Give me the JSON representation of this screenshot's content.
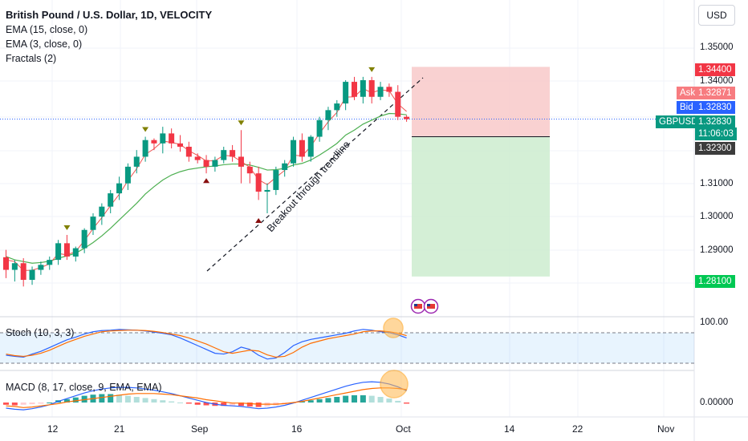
{
  "legend": {
    "title": "British Pound / U.S. Dollar, 1D, VELOCITY",
    "ema15": "EMA (15, close, 0)",
    "ema3": "EMA (3, close, 0)",
    "fractals": "Fractals (2)"
  },
  "currency_button": "USD",
  "symbol": "GBPUSD",
  "countdown": "11:06:03",
  "price_axis": {
    "ticks": [
      "1.35000",
      "1.34000",
      "1.31000",
      "1.30000",
      "1.29000"
    ],
    "take_profit": "1.34400",
    "ask_label": "Ask",
    "ask": "1.32871",
    "bid_label": "Bid",
    "bid": "1.32830",
    "last": "1.32830",
    "entry": "1.32300",
    "stop": "1.28100",
    "stoch_level": "100.00",
    "macd_level": "0.00000"
  },
  "x_axis": [
    "12",
    "21",
    "Sep",
    "16",
    "Oct",
    "14",
    "22",
    "Nov"
  ],
  "annotation": "Breakout through trendline",
  "stoch_label": "Stoch (10, 3, 3)",
  "macd_label": "MACD (8, 17, close, 9, EMA, EMA)",
  "colors": {
    "up": "#089981",
    "down": "#f23645",
    "ema15": "#4caf50",
    "ema3": "#ef5350",
    "stoch_k": "#2962ff",
    "stoch_d": "#ff6d00",
    "profit": "#f8c9c9",
    "loss": "#cdeccf"
  },
  "chart_data": {
    "type": "candlestick",
    "timeframe": "1D",
    "yrange": [
      1.276,
      1.356
    ],
    "candles": [
      [
        1.2868,
        1.289,
        1.2805,
        1.283
      ],
      [
        1.283,
        1.286,
        1.2795,
        1.285
      ],
      [
        1.285,
        1.2865,
        1.278,
        1.28
      ],
      [
        1.28,
        1.284,
        1.2785,
        1.283
      ],
      [
        1.283,
        1.2855,
        1.2815,
        1.2845
      ],
      [
        1.2845,
        1.287,
        1.283,
        1.286
      ],
      [
        1.286,
        1.292,
        1.2845,
        1.291
      ],
      [
        1.291,
        1.2935,
        1.286,
        1.287
      ],
      [
        1.287,
        1.29,
        1.2855,
        1.2895
      ],
      [
        1.2895,
        1.2955,
        1.288,
        1.295
      ],
      [
        1.295,
        1.3,
        1.2935,
        1.299
      ],
      [
        1.299,
        1.303,
        1.2965,
        1.302
      ],
      [
        1.302,
        1.307,
        1.3,
        1.306
      ],
      [
        1.306,
        1.311,
        1.304,
        1.309
      ],
      [
        1.309,
        1.315,
        1.307,
        1.314
      ],
      [
        1.314,
        1.319,
        1.312,
        1.317
      ],
      [
        1.317,
        1.323,
        1.3155,
        1.322
      ],
      [
        1.322,
        1.3225,
        1.319,
        1.321
      ],
      [
        1.321,
        1.326,
        1.318,
        1.324
      ],
      [
        1.324,
        1.3255,
        1.3195,
        1.321
      ],
      [
        1.321,
        1.3235,
        1.3185,
        1.32
      ],
      [
        1.32,
        1.3215,
        1.3155,
        1.317
      ],
      [
        1.317,
        1.318,
        1.315,
        1.316
      ],
      [
        1.316,
        1.3175,
        1.312,
        1.314
      ],
      [
        1.314,
        1.317,
        1.3125,
        1.316
      ],
      [
        1.316,
        1.32,
        1.315,
        1.319
      ],
      [
        1.319,
        1.3205,
        1.3155,
        1.317
      ],
      [
        1.317,
        1.325,
        1.309,
        1.314
      ],
      [
        1.314,
        1.3155,
        1.309,
        1.312
      ],
      [
        1.312,
        1.314,
        1.304,
        1.3065
      ],
      [
        1.3065,
        1.309,
        1.3,
        1.307
      ],
      [
        1.307,
        1.314,
        1.3055,
        1.313
      ],
      [
        1.313,
        1.316,
        1.311,
        1.315
      ],
      [
        1.315,
        1.323,
        1.314,
        1.322
      ],
      [
        1.322,
        1.324,
        1.3155,
        1.317
      ],
      [
        1.317,
        1.3235,
        1.3155,
        1.323
      ],
      [
        1.323,
        1.329,
        1.3215,
        1.328
      ],
      [
        1.328,
        1.332,
        1.325,
        1.331
      ],
      [
        1.331,
        1.334,
        1.329,
        1.333
      ],
      [
        1.333,
        1.34,
        1.331,
        1.3395
      ],
      [
        1.3395,
        1.341,
        1.334,
        1.335
      ],
      [
        1.335,
        1.341,
        1.333,
        1.34
      ],
      [
        1.34,
        1.341,
        1.333,
        1.335
      ],
      [
        1.335,
        1.3395,
        1.334,
        1.338
      ],
      [
        1.338,
        1.339,
        1.335,
        1.3365
      ],
      [
        1.3365,
        1.3385,
        1.328,
        1.329
      ],
      [
        1.329,
        1.3295,
        1.3275,
        1.3283
      ]
    ],
    "ema15": [
      1.287,
      1.286,
      1.2855,
      1.285,
      1.2852,
      1.2856,
      1.2865,
      1.2872,
      1.288,
      1.2895,
      1.2912,
      1.2932,
      1.2955,
      1.298,
      1.3005,
      1.303,
      1.3058,
      1.308,
      1.31,
      1.3115,
      1.3125,
      1.3132,
      1.3136,
      1.314,
      1.3142,
      1.3146,
      1.3148,
      1.3148,
      1.3145,
      1.3138,
      1.313,
      1.3131,
      1.3135,
      1.3145,
      1.315,
      1.316,
      1.3175,
      1.3192,
      1.321,
      1.3235,
      1.325,
      1.3268,
      1.328,
      1.3292,
      1.33,
      1.3299,
      1.3296
    ],
    "ema3": [
      1.286,
      1.2855,
      1.2828,
      1.2829,
      1.2837,
      1.2848,
      1.2879,
      1.2875,
      1.2885,
      1.2918,
      1.2954,
      1.2987,
      1.3023,
      1.3057,
      1.3098,
      1.3134,
      1.3177,
      1.3194,
      1.3217,
      1.3213,
      1.3207,
      1.3188,
      1.3174,
      1.3157,
      1.3158,
      1.3174,
      1.3172,
      1.3156,
      1.3138,
      1.3101,
      1.3086,
      1.3108,
      1.3129,
      1.3175,
      1.3172,
      1.3201,
      1.324,
      1.3275,
      1.3303,
      1.3349,
      1.335,
      1.3375,
      1.3362,
      1.3371,
      1.3368,
      1.3329,
      1.3306
    ],
    "fractals_up": [
      [
        7,
        1.2935
      ],
      [
        16,
        1.323
      ],
      [
        27,
        1.325
      ],
      [
        42,
        1.341
      ]
    ],
    "fractals_down": [
      [
        23,
        1.312
      ],
      [
        29,
        1.3
      ]
    ],
    "position": {
      "entry": 1.323,
      "take_profit": 1.344,
      "stop": 1.281
    },
    "trendline": [
      [
        23,
        1.2895
      ],
      [
        48,
        1.3395
      ]
    ],
    "stoch_k": [
      25,
      22,
      20,
      28,
      35,
      45,
      55,
      65,
      72,
      80,
      86,
      89,
      90,
      92,
      91,
      90,
      88,
      85,
      82,
      78,
      70,
      60,
      50,
      40,
      30,
      28,
      34,
      46,
      40,
      25,
      15,
      18,
      32,
      50,
      60,
      66,
      70,
      74,
      78,
      82,
      88,
      92,
      90,
      86,
      84,
      78,
      70
    ],
    "stoch_d": [
      28,
      24,
      22,
      25,
      30,
      38,
      48,
      58,
      66,
      74,
      80,
      86,
      88,
      89,
      90,
      90,
      89,
      87,
      84,
      80,
      76,
      70,
      62,
      54,
      44,
      34,
      30,
      34,
      38,
      36,
      26,
      20,
      22,
      32,
      46,
      56,
      62,
      68,
      72,
      76,
      80,
      86,
      88,
      88,
      86,
      82,
      76
    ],
    "macd_hist": [
      -0.0004,
      -0.0005,
      -0.0004,
      -0.0003,
      -0.0002,
      0.0,
      0.0004,
      0.0006,
      0.0009,
      0.0012,
      0.0014,
      0.0015,
      0.0015,
      0.0014,
      0.0012,
      0.001,
      0.0008,
      0.0006,
      0.0004,
      0.0002,
      0.0,
      -0.0002,
      -0.0004,
      -0.0005,
      -0.0006,
      -0.0006,
      -0.0005,
      -0.0006,
      -0.0007,
      -0.0008,
      -0.0007,
      -0.0005,
      -0.0003,
      -0.0001,
      0.0002,
      0.0004,
      0.0006,
      0.0008,
      0.001,
      0.0012,
      0.0013,
      0.0013,
      0.0012,
      0.001,
      0.0007,
      0.0003,
      -0.0002
    ],
    "macd_line": [
      -0.001,
      -0.0012,
      -0.0013,
      -0.0011,
      -0.0008,
      -0.0004,
      0.0002,
      0.0007,
      0.0012,
      0.0017,
      0.0021,
      0.0024,
      0.0026,
      0.0027,
      0.0027,
      0.0026,
      0.0024,
      0.0022,
      0.0019,
      0.0016,
      0.0012,
      0.0008,
      0.0004,
      0.0,
      -0.0003,
      -0.0005,
      -0.0006,
      -0.0007,
      -0.0009,
      -0.0011,
      -0.001,
      -0.0008,
      -0.0005,
      -0.0001,
      0.0004,
      0.0009,
      0.0014,
      0.0019,
      0.0024,
      0.0029,
      0.0033,
      0.0036,
      0.0037,
      0.0036,
      0.0033,
      0.0028,
      0.0021
    ],
    "macd_signal": [
      -0.0006,
      -0.0007,
      -0.0009,
      -0.0008,
      -0.0006,
      -0.0004,
      -0.0002,
      0.0001,
      0.0003,
      0.0005,
      0.0007,
      0.0009,
      0.0011,
      0.0013,
      0.0015,
      0.0016,
      0.0016,
      0.0016,
      0.0015,
      0.0014,
      0.0012,
      0.001,
      0.0008,
      0.0005,
      0.0003,
      0.0001,
      -0.0001,
      -0.0001,
      -0.0002,
      -0.0003,
      -0.0003,
      -0.0003,
      -0.0002,
      0.0,
      0.0002,
      0.0005,
      0.0008,
      0.0011,
      0.0014,
      0.0017,
      0.002,
      0.0023,
      0.0025,
      0.0026,
      0.0026,
      0.0025,
      0.0023
    ]
  }
}
